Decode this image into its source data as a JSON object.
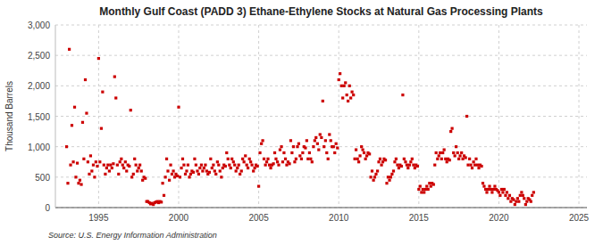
{
  "chart_data": {
    "type": "scatter",
    "title": "Monthly Gulf Coast (PADD 3) Ethane-Ethylene Stocks at Natural Gas Processing Plants",
    "ylabel": "Thousand Barrels",
    "source": "Source: U.S. Energy Information Administration",
    "color": "#CC0000",
    "marker": "square",
    "grid": true,
    "xlim": [
      1992.3,
      2025.5
    ],
    "ylim": [
      0,
      3000
    ],
    "xticks": [
      1995,
      2000,
      2005,
      2010,
      2015,
      2020,
      2025
    ],
    "yticks": [
      0,
      500,
      {
        "value": 1000,
        "label": "1,000"
      },
      {
        "value": 1500,
        "label": "1,500"
      },
      {
        "value": 2000,
        "label": "2,000"
      },
      {
        "value": 2500,
        "label": "2,500"
      },
      {
        "value": 3000,
        "label": "3,000"
      }
    ],
    "x": [
      1993.0,
      1993.08,
      1993.17,
      1993.25,
      1993.33,
      1993.42,
      1993.5,
      1993.58,
      1993.67,
      1993.75,
      1993.83,
      1993.92,
      1994.0,
      1994.08,
      1994.17,
      1994.25,
      1994.33,
      1994.42,
      1994.5,
      1994.58,
      1994.67,
      1994.75,
      1994.83,
      1994.92,
      1995.0,
      1995.08,
      1995.17,
      1995.25,
      1995.33,
      1995.42,
      1995.5,
      1995.58,
      1995.67,
      1995.75,
      1995.83,
      1995.92,
      1996.0,
      1996.08,
      1996.17,
      1996.25,
      1996.33,
      1996.42,
      1996.5,
      1996.58,
      1996.67,
      1996.75,
      1996.83,
      1996.92,
      1997.0,
      1997.08,
      1997.17,
      1997.25,
      1997.33,
      1997.42,
      1997.5,
      1997.58,
      1997.67,
      1997.75,
      1997.83,
      1997.92,
      1998.0,
      1998.08,
      1998.17,
      1998.25,
      1998.33,
      1998.42,
      1998.5,
      1998.58,
      1998.67,
      1998.75,
      1998.83,
      1998.92,
      1999.0,
      1999.08,
      1999.17,
      1999.25,
      1999.33,
      1999.42,
      1999.5,
      1999.58,
      1999.67,
      1999.75,
      1999.83,
      1999.92,
      2000.0,
      2000.08,
      2000.17,
      2000.25,
      2000.33,
      2000.42,
      2000.5,
      2000.58,
      2000.67,
      2000.75,
      2000.83,
      2000.92,
      2001.0,
      2001.08,
      2001.17,
      2001.25,
      2001.33,
      2001.42,
      2001.5,
      2001.58,
      2001.67,
      2001.75,
      2001.83,
      2001.92,
      2002.0,
      2002.08,
      2002.17,
      2002.25,
      2002.33,
      2002.42,
      2002.5,
      2002.58,
      2002.67,
      2002.75,
      2002.83,
      2002.92,
      2003.0,
      2003.08,
      2003.17,
      2003.25,
      2003.33,
      2003.42,
      2003.5,
      2003.58,
      2003.67,
      2003.75,
      2003.83,
      2003.92,
      2004.0,
      2004.08,
      2004.17,
      2004.25,
      2004.33,
      2004.42,
      2004.5,
      2004.58,
      2004.67,
      2004.75,
      2004.83,
      2004.92,
      2005.0,
      2005.08,
      2005.17,
      2005.25,
      2005.33,
      2005.42,
      2005.5,
      2005.58,
      2005.67,
      2005.75,
      2005.83,
      2005.92,
      2006.0,
      2006.08,
      2006.17,
      2006.25,
      2006.33,
      2006.42,
      2006.5,
      2006.58,
      2006.67,
      2006.75,
      2006.83,
      2006.92,
      2007.0,
      2007.08,
      2007.17,
      2007.25,
      2007.33,
      2007.42,
      2007.5,
      2007.58,
      2007.67,
      2007.75,
      2007.83,
      2007.92,
      2008.0,
      2008.08,
      2008.17,
      2008.25,
      2008.33,
      2008.42,
      2008.5,
      2008.58,
      2008.67,
      2008.75,
      2008.83,
      2008.92,
      2009.0,
      2009.08,
      2009.17,
      2009.25,
      2009.33,
      2009.42,
      2009.5,
      2009.58,
      2009.67,
      2009.75,
      2009.83,
      2009.92,
      2010.0,
      2010.08,
      2010.17,
      2010.25,
      2010.33,
      2010.42,
      2010.5,
      2010.58,
      2010.67,
      2010.75,
      2010.83,
      2010.92,
      2011.0,
      2011.08,
      2011.17,
      2011.25,
      2011.33,
      2011.42,
      2011.5,
      2011.58,
      2011.67,
      2011.75,
      2011.83,
      2011.92,
      2012.0,
      2012.08,
      2012.17,
      2012.25,
      2012.33,
      2012.42,
      2012.5,
      2012.58,
      2012.67,
      2012.75,
      2012.83,
      2012.92,
      2013.0,
      2013.08,
      2013.17,
      2013.25,
      2013.33,
      2013.42,
      2013.5,
      2013.58,
      2013.67,
      2013.75,
      2013.83,
      2013.92,
      2014.0,
      2014.08,
      2014.17,
      2014.25,
      2014.33,
      2014.42,
      2014.5,
      2014.58,
      2014.67,
      2014.75,
      2014.83,
      2014.92,
      2015.0,
      2015.08,
      2015.17,
      2015.25,
      2015.33,
      2015.42,
      2015.5,
      2015.58,
      2015.67,
      2015.75,
      2015.83,
      2015.92,
      2016.0,
      2016.08,
      2016.17,
      2016.25,
      2016.33,
      2016.42,
      2016.5,
      2016.58,
      2016.67,
      2016.75,
      2016.83,
      2016.92,
      2017.0,
      2017.08,
      2017.17,
      2017.25,
      2017.33,
      2017.42,
      2017.5,
      2017.58,
      2017.67,
      2017.75,
      2017.83,
      2017.92,
      2018.0,
      2018.08,
      2018.17,
      2018.25,
      2018.33,
      2018.42,
      2018.5,
      2018.58,
      2018.67,
      2018.75,
      2018.83,
      2018.92,
      2019.0,
      2019.08,
      2019.17,
      2019.25,
      2019.33,
      2019.42,
      2019.5,
      2019.58,
      2019.67,
      2019.75,
      2019.83,
      2019.92,
      2020.0,
      2020.08,
      2020.17,
      2020.25,
      2020.33,
      2020.42,
      2020.5,
      2020.58,
      2020.67,
      2020.75,
      2020.83,
      2020.92,
      2021.0,
      2021.08,
      2021.17,
      2021.25,
      2021.33,
      2021.42,
      2021.5,
      2021.58,
      2021.67,
      2021.75,
      2021.83,
      2021.92,
      2022.0,
      2022.08,
      2022.17
    ],
    "values": [
      1000,
      400,
      2600,
      700,
      1350,
      750,
      1650,
      500,
      730,
      400,
      450,
      380,
      1400,
      800,
      2100,
      1550,
      750,
      550,
      850,
      600,
      700,
      500,
      750,
      680,
      2450,
      750,
      1300,
      1900,
      700,
      550,
      650,
      700,
      600,
      700,
      650,
      720,
      2150,
      1800,
      700,
      550,
      750,
      800,
      700,
      650,
      750,
      600,
      700,
      680,
      1600,
      500,
      550,
      800,
      700,
      600,
      650,
      700,
      600,
      450,
      500,
      480,
      100,
      100,
      80,
      60,
      70,
      50,
      80,
      90,
      100,
      80,
      100,
      90,
      400,
      200,
      500,
      800,
      600,
      450,
      700,
      550,
      600,
      500,
      550,
      520,
      1650,
      500,
      650,
      800,
      700,
      550,
      600,
      700,
      500,
      550,
      600,
      580,
      800,
      700,
      600,
      550,
      650,
      700,
      600,
      650,
      700,
      600,
      550,
      580,
      800,
      650,
      700,
      600,
      550,
      750,
      700,
      600,
      500,
      650,
      700,
      680,
      900,
      800,
      700,
      650,
      800,
      750,
      700,
      600,
      650,
      700,
      550,
      600,
      800,
      750,
      850,
      700,
      650,
      800,
      750,
      700,
      600,
      650,
      700,
      680,
      350,
      900,
      1050,
      1100,
      800,
      700,
      750,
      800,
      700,
      650,
      700,
      720,
      900,
      800,
      750,
      700,
      950,
      1000,
      750,
      900,
      800,
      700,
      750,
      720,
      1100,
      900,
      1000,
      750,
      800,
      1000,
      1050,
      850,
      800,
      900,
      1000,
      980,
      1100,
      800,
      900,
      800,
      750,
      1000,
      1100,
      1150,
      1050,
      950,
      1200,
      1150,
      1750,
      1000,
      1100,
      900,
      800,
      1200,
      1100,
      1000,
      1000,
      900,
      1050,
      980,
      2100,
      2200,
      2000,
      1800,
      2000,
      2050,
      1850,
      1750,
      2000,
      1800,
      1900,
      1850,
      800,
      950,
      800,
      750,
      850,
      1000,
      950,
      900,
      800,
      850,
      900,
      880,
      500,
      600,
      450,
      500,
      550,
      600,
      750,
      800,
      700,
      750,
      800,
      780,
      400,
      500,
      450,
      500,
      550,
      600,
      750,
      800,
      700,
      650,
      700,
      680,
      1850,
      800,
      750,
      700,
      650,
      700,
      750,
      800,
      700,
      650,
      700,
      680,
      300,
      350,
      250,
      300,
      250,
      300,
      350,
      300,
      400,
      350,
      400,
      380,
      700,
      900,
      800,
      850,
      900,
      800,
      900,
      950,
      800,
      750,
      800,
      780,
      1250,
      1300,
      900,
      850,
      1000,
      900,
      800,
      850,
      900,
      800,
      850,
      820,
      1500,
      700,
      800,
      700,
      650,
      750,
      700,
      800,
      700,
      650,
      700,
      680,
      400,
      350,
      300,
      250,
      300,
      350,
      300,
      250,
      300,
      350,
      300,
      280,
      250,
      200,
      300,
      250,
      300,
      200,
      250,
      150,
      200,
      100,
      150,
      130,
      50,
      100,
      150,
      100,
      200,
      250,
      200,
      150,
      50,
      100,
      150,
      130,
      100,
      200,
      250
    ]
  }
}
